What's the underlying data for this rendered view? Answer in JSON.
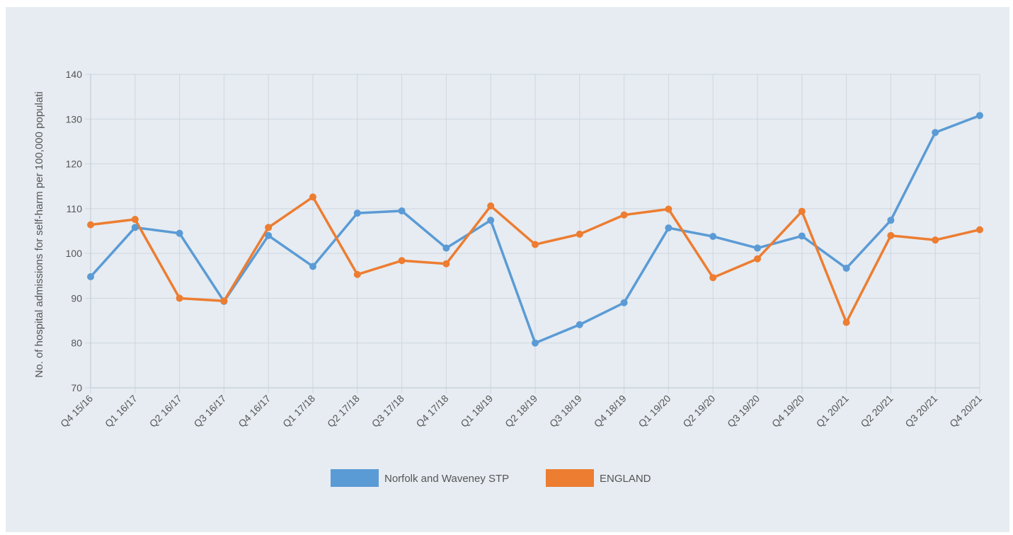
{
  "chart_data": {
    "type": "line",
    "title": "",
    "ylabel": "No. of hospital admissions for self-harm per 100,000 populati",
    "xlabel": "",
    "ylim": [
      70,
      140
    ],
    "yticks": [
      70,
      80,
      90,
      100,
      110,
      120,
      130,
      140
    ],
    "grid": true,
    "legend_position": "bottom-center",
    "categories": [
      "Q4 15/16",
      "Q1 16/17",
      "Q2 16/17",
      "Q3 16/17",
      "Q4 16/17",
      "Q1 17/18",
      "Q2 17/18",
      "Q3 17/18",
      "Q4 17/18",
      "Q1 18/19",
      "Q2 18/19",
      "Q3 18/19",
      "Q4 18/19",
      "Q1 19/20",
      "Q2 19/20",
      "Q3 19/20",
      "Q4 19/20",
      "Q1 20/21",
      "Q2 20/21",
      "Q3 20/21",
      "Q4 20/21"
    ],
    "series": [
      {
        "name": "Norfolk and Waveney STP",
        "color": "#5b9bd5",
        "values": [
          94.8,
          105.8,
          104.5,
          89.3,
          104.0,
          97.1,
          109.0,
          109.5,
          101.2,
          107.4,
          80.0,
          84.1,
          89.0,
          105.7,
          103.8,
          101.2,
          103.9,
          96.7,
          107.4,
          127.0,
          130.8
        ]
      },
      {
        "name": "ENGLAND",
        "color": "#ed7d31",
        "values": [
          106.4,
          107.6,
          90.0,
          89.4,
          105.8,
          112.6,
          95.3,
          98.4,
          97.7,
          110.6,
          102.0,
          104.3,
          108.6,
          109.9,
          94.6,
          98.8,
          109.4,
          84.6,
          104.0,
          103.0,
          105.3
        ]
      }
    ]
  }
}
